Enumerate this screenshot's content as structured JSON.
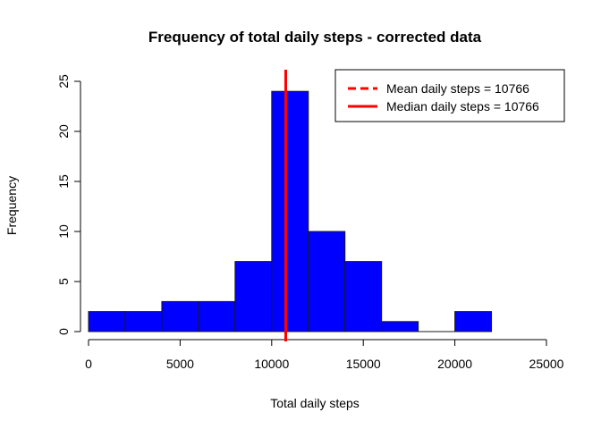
{
  "chart_data": {
    "type": "bar",
    "title": "Frequency of total daily steps - corrected data",
    "xlabel": "Total daily steps",
    "ylabel": "Frequency",
    "bins": [
      {
        "x0": 0,
        "x1": 2000,
        "count": 2
      },
      {
        "x0": 2000,
        "x1": 4000,
        "count": 2
      },
      {
        "x0": 4000,
        "x1": 6000,
        "count": 3
      },
      {
        "x0": 6000,
        "x1": 8000,
        "count": 3
      },
      {
        "x0": 8000,
        "x1": 10000,
        "count": 7
      },
      {
        "x0": 10000,
        "x1": 12000,
        "count": 24
      },
      {
        "x0": 12000,
        "x1": 14000,
        "count": 10
      },
      {
        "x0": 14000,
        "x1": 16000,
        "count": 7
      },
      {
        "x0": 16000,
        "x1": 18000,
        "count": 1
      },
      {
        "x0": 18000,
        "x1": 20000,
        "count": 0
      },
      {
        "x0": 20000,
        "x1": 22000,
        "count": 2
      }
    ],
    "xlim": [
      0,
      25000
    ],
    "ylim": [
      0,
      25
    ],
    "x_ticks": [
      0,
      5000,
      10000,
      15000,
      20000,
      25000
    ],
    "y_ticks": [
      0,
      5,
      10,
      15,
      20,
      25
    ],
    "bar_color": "#0000ff",
    "reference_lines": [
      {
        "label": "Mean daily steps = 10766",
        "value": 10766,
        "color": "#ff0000",
        "style": "dashed"
      },
      {
        "label": "Median daily steps = 10766",
        "value": 10766,
        "color": "#ff0000",
        "style": "solid"
      }
    ],
    "grid": false,
    "legend_position": "top-right"
  }
}
